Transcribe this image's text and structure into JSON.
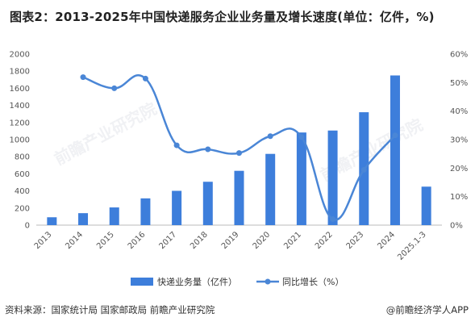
{
  "title": "图表2：2013-2025年中国快递服务企业业务量及增长速度(单位：亿件，%)",
  "footer": {
    "source": "资料来源：国家统计局 国家邮政局 前瞻产业研究院",
    "credit": "@前瞻经济学人APP"
  },
  "watermarks": [
    "前瞻产业研究院",
    "前瞻产业研究院"
  ],
  "colors": {
    "bar": "#3d7edb",
    "line": "#4a86d6"
  },
  "chart_data": {
    "type": "bar+line",
    "categories": [
      "2013",
      "2014",
      "2015",
      "2016",
      "2017",
      "2018",
      "2019",
      "2020",
      "2021",
      "2022",
      "2023",
      "2024",
      "2025.1-3"
    ],
    "series": [
      {
        "name": "快递业务量（亿件）",
        "type": "bar",
        "axis": "left",
        "values": [
          92,
          140,
          207,
          313,
          401,
          507,
          635,
          833,
          1083,
          1106,
          1320,
          1750,
          450
        ]
      },
      {
        "name": "同比增长（%）",
        "type": "line",
        "axis": "right",
        "values": [
          null,
          51.9,
          48.0,
          51.4,
          28.0,
          26.6,
          25.3,
          31.2,
          30.9,
          2.1,
          19.4,
          31.5,
          null
        ]
      }
    ],
    "y_left": {
      "ylim": [
        0,
        2000
      ],
      "ticks": [
        "0",
        "200",
        "400",
        "600",
        "800",
        "1000",
        "1200",
        "1400",
        "1600",
        "1800",
        "2000"
      ]
    },
    "y_right": {
      "ylim": [
        0,
        60
      ],
      "ticks": [
        "0%",
        "10%",
        "20%",
        "30%",
        "40%",
        "50%",
        "60%"
      ]
    },
    "legend_position": "bottom",
    "grid": false
  }
}
